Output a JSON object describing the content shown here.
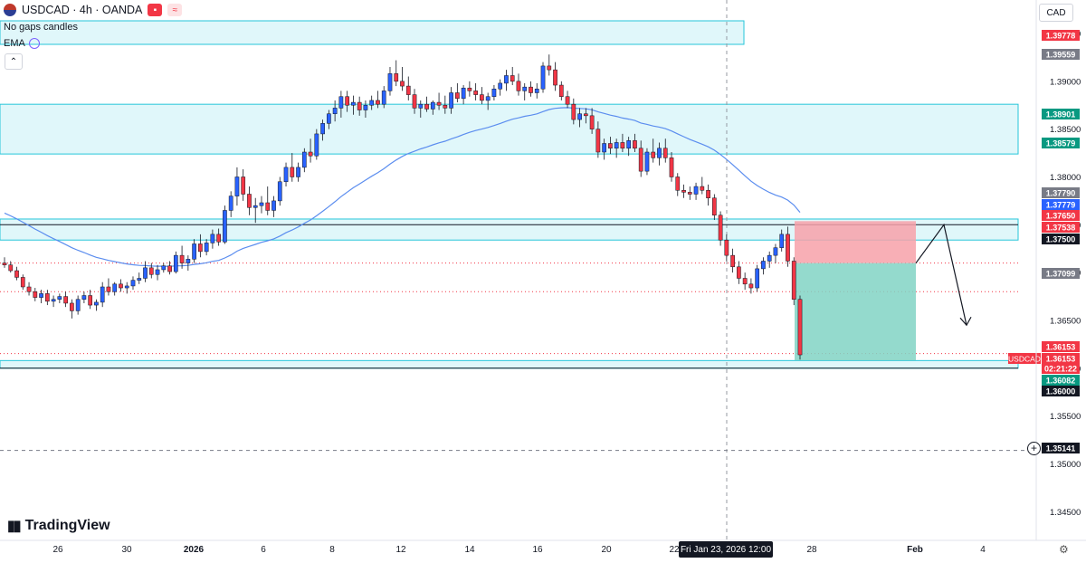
{
  "header": {
    "symbol": "USDCAD · 4h · OANDA",
    "line2": "No gaps candles",
    "line3": "EMA",
    "currency": "CAD",
    "brand": "TradingView",
    "crosshair_date": "Fri Jan 23, 2026   12:00"
  },
  "colors": {
    "up": "#2962ff",
    "down": "#f23645",
    "ema": "#5b8def",
    "zone_fill": "#e0f7fa",
    "zone_border": "#26c6da",
    "stop_fill": "#f7a1a9",
    "target_fill": "#81d4c4",
    "label_red": "#f23645",
    "label_green": "#089981",
    "label_gray": "#787b86",
    "label_dark": "#131722"
  },
  "chart_data": {
    "type": "candlestick",
    "symbol": "USDCAD",
    "timeframe": "4h",
    "y_axis": {
      "min": 1.342,
      "max": 1.3985,
      "ticks": [
        "1.34500",
        "1.35000",
        "1.35500",
        "1.36000",
        "1.36500",
        "1.37000",
        "1.37500",
        "1.38000",
        "1.38500",
        "1.39000",
        "1.39500"
      ]
    },
    "x_axis": {
      "ticks": [
        "26",
        "30",
        "2026",
        "6",
        "8",
        "12",
        "14",
        "16",
        "20",
        "22",
        "28",
        "Feb",
        "4"
      ]
    },
    "price_labels": [
      {
        "value": "1.39778",
        "price": 1.39778,
        "style": "red"
      },
      {
        "value": "1.39559",
        "price": 1.39559,
        "style": "gray"
      },
      {
        "value": "1.38901",
        "price": 1.38901,
        "style": "green"
      },
      {
        "value": "1.38579",
        "price": 1.38579,
        "style": "green"
      },
      {
        "value": "1.37790",
        "price": 1.3779,
        "style": "gray"
      },
      {
        "value": "1.37779",
        "price": 1.37779,
        "style": "blue"
      },
      {
        "value": "1.37650",
        "price": 1.3765,
        "style": "red"
      },
      {
        "value": "1.37538",
        "price": 1.37538,
        "style": "red"
      },
      {
        "value": "1.37500",
        "price": 1.375,
        "style": "dark"
      },
      {
        "value": "1.37099",
        "price": 1.37099,
        "style": "gray"
      },
      {
        "value": "1.36153",
        "price": 1.36153,
        "style": "red"
      },
      {
        "value": "1.36153",
        "price": 1.36153,
        "style": "red"
      },
      {
        "value": "02:21:22",
        "price": 1.36153,
        "style": "red"
      },
      {
        "value": "1.36082",
        "price": 1.36082,
        "style": "green"
      },
      {
        "value": "1.36000",
        "price": 1.36,
        "style": "dark"
      },
      {
        "value": "1.35141",
        "price": 1.35141,
        "style": "dark"
      }
    ],
    "last_price_tag": "USDCAD",
    "zones": [
      {
        "name": "supply-zone",
        "from": 1.3824,
        "to": 1.3876
      },
      {
        "name": "mid-zone",
        "from": 1.3734,
        "to": 1.3756
      },
      {
        "name": "support-zone",
        "from": 1.36,
        "to": 1.3608
      }
    ],
    "horizontal_lines": [
      {
        "price": 1.375,
        "style": "solid"
      },
      {
        "price": 1.36,
        "style": "solid"
      },
      {
        "price": 1.37099,
        "style": "dotted-red"
      },
      {
        "price": 1.368,
        "style": "dotted-red"
      },
      {
        "price": 1.36153,
        "style": "dotted-red"
      },
      {
        "price": 1.35141,
        "style": "dashed"
      }
    ],
    "position": {
      "entry": 1.37099,
      "stop": 1.37538,
      "target": 1.36082
    },
    "candles": [
      [
        1.371,
        1.3716,
        1.3705,
        1.3708
      ],
      [
        1.3708,
        1.3712,
        1.37,
        1.3702
      ],
      [
        1.3702,
        1.3706,
        1.3692,
        1.3695
      ],
      [
        1.3695,
        1.3698,
        1.3682,
        1.3685
      ],
      [
        1.3685,
        1.369,
        1.3676,
        1.368
      ],
      [
        1.368,
        1.3684,
        1.367,
        1.3674
      ],
      [
        1.3674,
        1.3682,
        1.3668,
        1.3678
      ],
      [
        1.3678,
        1.3682,
        1.3666,
        1.367
      ],
      [
        1.367,
        1.3676,
        1.3664,
        1.3672
      ],
      [
        1.3672,
        1.3678,
        1.3668,
        1.3675
      ],
      [
        1.3675,
        1.368,
        1.3664,
        1.3668
      ],
      [
        1.3668,
        1.3672,
        1.3652,
        1.366
      ],
      [
        1.366,
        1.3676,
        1.3656,
        1.3672
      ],
      [
        1.3672,
        1.368,
        1.3668,
        1.3676
      ],
      [
        1.3676,
        1.3682,
        1.3662,
        1.3666
      ],
      [
        1.3666,
        1.3672,
        1.366,
        1.3669
      ],
      [
        1.3669,
        1.369,
        1.3664,
        1.3685
      ],
      [
        1.3685,
        1.3694,
        1.3676,
        1.368
      ],
      [
        1.368,
        1.369,
        1.3676,
        1.3688
      ],
      [
        1.3688,
        1.3693,
        1.368,
        1.3684
      ],
      [
        1.3684,
        1.369,
        1.3678,
        1.3686
      ],
      [
        1.3686,
        1.3696,
        1.3682,
        1.3692
      ],
      [
        1.3692,
        1.37,
        1.3688,
        1.3694
      ],
      [
        1.3694,
        1.3712,
        1.369,
        1.3705
      ],
      [
        1.3705,
        1.371,
        1.3694,
        1.3698
      ],
      [
        1.3698,
        1.3708,
        1.3692,
        1.3703
      ],
      [
        1.3703,
        1.371,
        1.37,
        1.3707
      ],
      [
        1.3707,
        1.3712,
        1.3698,
        1.3701
      ],
      [
        1.3701,
        1.3722,
        1.3699,
        1.3718
      ],
      [
        1.3718,
        1.3728,
        1.3704,
        1.371
      ],
      [
        1.371,
        1.3718,
        1.3702,
        1.3714
      ],
      [
        1.3714,
        1.3735,
        1.371,
        1.373
      ],
      [
        1.373,
        1.374,
        1.3716,
        1.3722
      ],
      [
        1.3722,
        1.3735,
        1.3718,
        1.3731
      ],
      [
        1.3731,
        1.3745,
        1.3725,
        1.374
      ],
      [
        1.374,
        1.3746,
        1.3728,
        1.3732
      ],
      [
        1.3732,
        1.377,
        1.373,
        1.3765
      ],
      [
        1.3765,
        1.3785,
        1.3758,
        1.378
      ],
      [
        1.378,
        1.381,
        1.377,
        1.38
      ],
      [
        1.38,
        1.3808,
        1.3775,
        1.3782
      ],
      [
        1.3782,
        1.379,
        1.376,
        1.3768
      ],
      [
        1.3768,
        1.3778,
        1.3752,
        1.377
      ],
      [
        1.377,
        1.378,
        1.3762,
        1.3773
      ],
      [
        1.3773,
        1.379,
        1.376,
        1.3765
      ],
      [
        1.3765,
        1.378,
        1.3758,
        1.3775
      ],
      [
        1.3775,
        1.38,
        1.377,
        1.3795
      ],
      [
        1.3795,
        1.3815,
        1.379,
        1.381
      ],
      [
        1.381,
        1.3825,
        1.3795,
        1.38
      ],
      [
        1.38,
        1.3815,
        1.3795,
        1.381
      ],
      [
        1.381,
        1.383,
        1.3805,
        1.3826
      ],
      [
        1.3826,
        1.384,
        1.3815,
        1.3822
      ],
      [
        1.3822,
        1.385,
        1.3818,
        1.3845
      ],
      [
        1.3845,
        1.386,
        1.3838,
        1.3856
      ],
      [
        1.3856,
        1.387,
        1.385,
        1.3866
      ],
      [
        1.3866,
        1.388,
        1.3858,
        1.3872
      ],
      [
        1.3872,
        1.389,
        1.3862,
        1.3884
      ],
      [
        1.3884,
        1.389,
        1.3868,
        1.3875
      ],
      [
        1.3875,
        1.3885,
        1.3865,
        1.3878
      ],
      [
        1.3878,
        1.3884,
        1.3864,
        1.387
      ],
      [
        1.387,
        1.388,
        1.3862,
        1.3875
      ],
      [
        1.3875,
        1.3885,
        1.387,
        1.388
      ],
      [
        1.388,
        1.389,
        1.3872,
        1.3876
      ],
      [
        1.3876,
        1.3895,
        1.3872,
        1.389
      ],
      [
        1.389,
        1.3915,
        1.3885,
        1.3908
      ],
      [
        1.3908,
        1.3922,
        1.3895,
        1.39
      ],
      [
        1.39,
        1.3915,
        1.389,
        1.3895
      ],
      [
        1.3895,
        1.3905,
        1.388,
        1.3886
      ],
      [
        1.3886,
        1.3892,
        1.3866,
        1.3872
      ],
      [
        1.3872,
        1.388,
        1.3862,
        1.3876
      ],
      [
        1.3876,
        1.3884,
        1.3868,
        1.3871
      ],
      [
        1.3871,
        1.388,
        1.3865,
        1.3878
      ],
      [
        1.3878,
        1.3888,
        1.387,
        1.3875
      ],
      [
        1.3875,
        1.3885,
        1.3866,
        1.3872
      ],
      [
        1.3872,
        1.3894,
        1.3866,
        1.3888
      ],
      [
        1.3888,
        1.3898,
        1.3878,
        1.3882
      ],
      [
        1.3882,
        1.3896,
        1.3876,
        1.3893
      ],
      [
        1.3893,
        1.39,
        1.3884,
        1.389
      ],
      [
        1.389,
        1.3898,
        1.388,
        1.3886
      ],
      [
        1.3886,
        1.3894,
        1.3876,
        1.388
      ],
      [
        1.388,
        1.3888,
        1.387,
        1.3884
      ],
      [
        1.3884,
        1.3896,
        1.388,
        1.3892
      ],
      [
        1.3892,
        1.3902,
        1.3885,
        1.3898
      ],
      [
        1.3898,
        1.3912,
        1.389,
        1.3906
      ],
      [
        1.3906,
        1.3915,
        1.3896,
        1.39
      ],
      [
        1.39,
        1.3908,
        1.3885,
        1.389
      ],
      [
        1.389,
        1.3898,
        1.388,
        1.3894
      ],
      [
        1.3894,
        1.39,
        1.3884,
        1.3888
      ],
      [
        1.3888,
        1.3898,
        1.3882,
        1.3892
      ],
      [
        1.3892,
        1.392,
        1.3888,
        1.3916
      ],
      [
        1.3916,
        1.3928,
        1.3906,
        1.3912
      ],
      [
        1.3912,
        1.392,
        1.389,
        1.3896
      ],
      [
        1.3896,
        1.39,
        1.388,
        1.3884
      ],
      [
        1.3884,
        1.389,
        1.3872,
        1.3876
      ],
      [
        1.3876,
        1.3882,
        1.3855,
        1.386
      ],
      [
        1.386,
        1.3872,
        1.3852,
        1.3866
      ],
      [
        1.3866,
        1.3872,
        1.3856,
        1.3864
      ],
      [
        1.3864,
        1.3872,
        1.3845,
        1.385
      ],
      [
        1.385,
        1.3858,
        1.382,
        1.3826
      ],
      [
        1.3826,
        1.384,
        1.3818,
        1.3835
      ],
      [
        1.3835,
        1.3842,
        1.3824,
        1.383
      ],
      [
        1.383,
        1.384,
        1.382,
        1.3836
      ],
      [
        1.3836,
        1.3845,
        1.3826,
        1.383
      ],
      [
        1.383,
        1.3842,
        1.3822,
        1.3838
      ],
      [
        1.3838,
        1.3845,
        1.3826,
        1.383
      ],
      [
        1.383,
        1.3838,
        1.38,
        1.3806
      ],
      [
        1.3806,
        1.383,
        1.3802,
        1.3826
      ],
      [
        1.3826,
        1.384,
        1.3815,
        1.382
      ],
      [
        1.382,
        1.3836,
        1.3812,
        1.383
      ],
      [
        1.383,
        1.384,
        1.3815,
        1.382
      ],
      [
        1.382,
        1.3826,
        1.3795,
        1.38
      ],
      [
        1.38,
        1.3804,
        1.378,
        1.3786
      ],
      [
        1.3786,
        1.3792,
        1.3778,
        1.3784
      ],
      [
        1.3784,
        1.379,
        1.3776,
        1.3782
      ],
      [
        1.3782,
        1.3794,
        1.3776,
        1.379
      ],
      [
        1.379,
        1.38,
        1.3782,
        1.3786
      ],
      [
        1.3786,
        1.3792,
        1.377,
        1.3778
      ],
      [
        1.3778,
        1.3782,
        1.3755,
        1.376
      ],
      [
        1.376,
        1.3764,
        1.3728,
        1.3734
      ],
      [
        1.3734,
        1.374,
        1.3712,
        1.3718
      ],
      [
        1.3718,
        1.3725,
        1.37,
        1.3706
      ],
      [
        1.3706,
        1.3712,
        1.3688,
        1.3694
      ],
      [
        1.3694,
        1.37,
        1.3682,
        1.3688
      ],
      [
        1.3688,
        1.3694,
        1.3678,
        1.3684
      ],
      [
        1.3684,
        1.3708,
        1.368,
        1.3704
      ],
      [
        1.3704,
        1.3716,
        1.3698,
        1.3712
      ],
      [
        1.3712,
        1.3722,
        1.3705,
        1.3718
      ],
      [
        1.3718,
        1.373,
        1.371,
        1.3726
      ],
      [
        1.3726,
        1.3745,
        1.3722,
        1.374
      ],
      [
        1.374,
        1.3748,
        1.3706,
        1.3712
      ],
      [
        1.3712,
        1.3716,
        1.3666,
        1.3672
      ],
      [
        1.3672,
        1.3676,
        1.3609,
        1.3614
      ]
    ],
    "ema_start": 1.3765
  }
}
